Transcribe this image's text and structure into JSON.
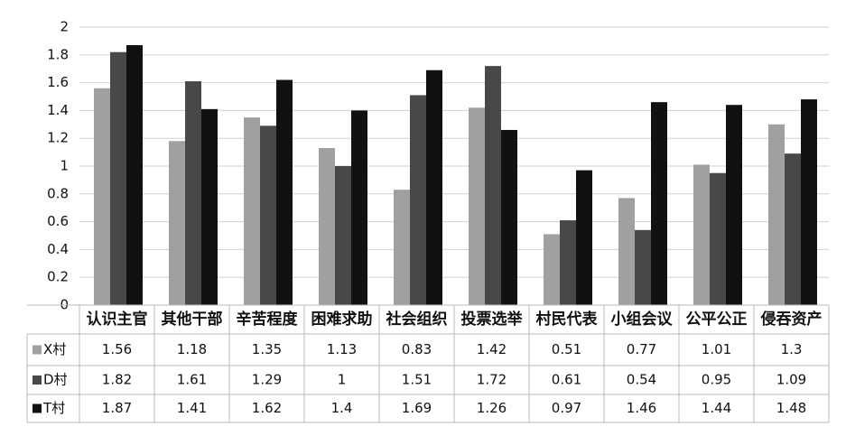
{
  "chart_data": {
    "type": "bar",
    "categories": [
      "认识主官",
      "其他干部",
      "辛苦程度",
      "困难求助",
      "社会组织",
      "投票选举",
      "村民代表",
      "小组会议",
      "公平公正",
      "侵吞资产"
    ],
    "series": [
      {
        "name": "X村",
        "color": "#a0a0a0",
        "values": [
          1.56,
          1.18,
          1.35,
          1.13,
          0.83,
          1.42,
          0.51,
          0.77,
          1.01,
          1.3
        ]
      },
      {
        "name": "D村",
        "color": "#484848",
        "values": [
          1.82,
          1.61,
          1.29,
          1,
          1.51,
          1.72,
          0.61,
          0.54,
          0.95,
          1.09
        ]
      },
      {
        "name": "T村",
        "color": "#111111",
        "values": [
          1.87,
          1.41,
          1.62,
          1.4,
          1.69,
          1.26,
          0.97,
          1.46,
          1.44,
          1.48
        ]
      }
    ],
    "ylim": [
      0,
      2
    ],
    "yticks": [
      0,
      0.2,
      0.4,
      0.6,
      0.8,
      1,
      1.2,
      1.4,
      1.6,
      1.8,
      2
    ],
    "grid": true
  }
}
